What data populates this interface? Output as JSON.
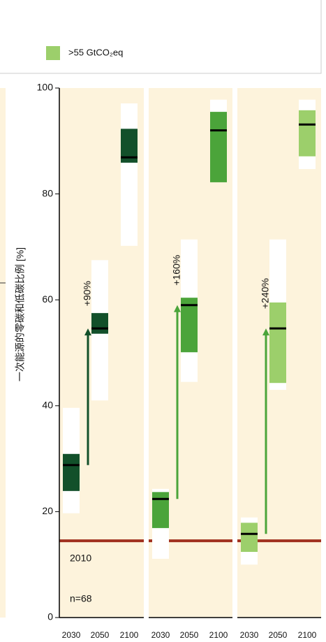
{
  "chart_data": {
    "type": "box",
    "categories": [
      "2030",
      "2050",
      "2100"
    ],
    "ylim": [
      0,
      100
    ],
    "yticks": [
      0,
      20,
      40,
      60,
      80,
      100
    ],
    "ylabel": "一次能源的零碳和低碳比例 [%]",
    "background": "#fdf3dc",
    "reference": {
      "label": "2010",
      "value": 14.5,
      "color": "#a1301f"
    },
    "note": "n=68",
    "series": [
      {
        "color": "#12502a",
        "arrow_color": "#12502a",
        "annotation": "+90%",
        "min": [
          19.7,
          41.0,
          70.2
        ],
        "q1": [
          23.9,
          53.6,
          85.9
        ],
        "median": [
          28.8,
          54.6,
          86.9
        ],
        "q3": [
          30.9,
          57.5,
          92.3
        ],
        "max": [
          39.6,
          67.5,
          97.1
        ]
      },
      {
        "color": "#4ba43a",
        "arrow_color": "#4ba43a",
        "annotation": "+160%",
        "min": [
          11.1,
          44.5,
          82.2
        ],
        "q1": [
          16.9,
          50.1,
          82.2
        ],
        "median": [
          22.4,
          59.0,
          92.0
        ],
        "q3": [
          23.7,
          60.4,
          95.5
        ],
        "max": [
          24.3,
          71.4,
          97.8
        ]
      },
      {
        "name": ">55 GtCO₂eq",
        "color": "#9ccf6b",
        "arrow_color": "#4ba43a",
        "annotation": "+240%",
        "min": [
          10.0,
          43.0,
          84.7
        ],
        "q1": [
          12.4,
          44.3,
          87.1
        ],
        "median": [
          15.8,
          54.6,
          93.1
        ],
        "q3": [
          17.9,
          59.5,
          95.8
        ],
        "max": [
          18.9,
          71.4,
          97.8
        ]
      }
    ]
  }
}
